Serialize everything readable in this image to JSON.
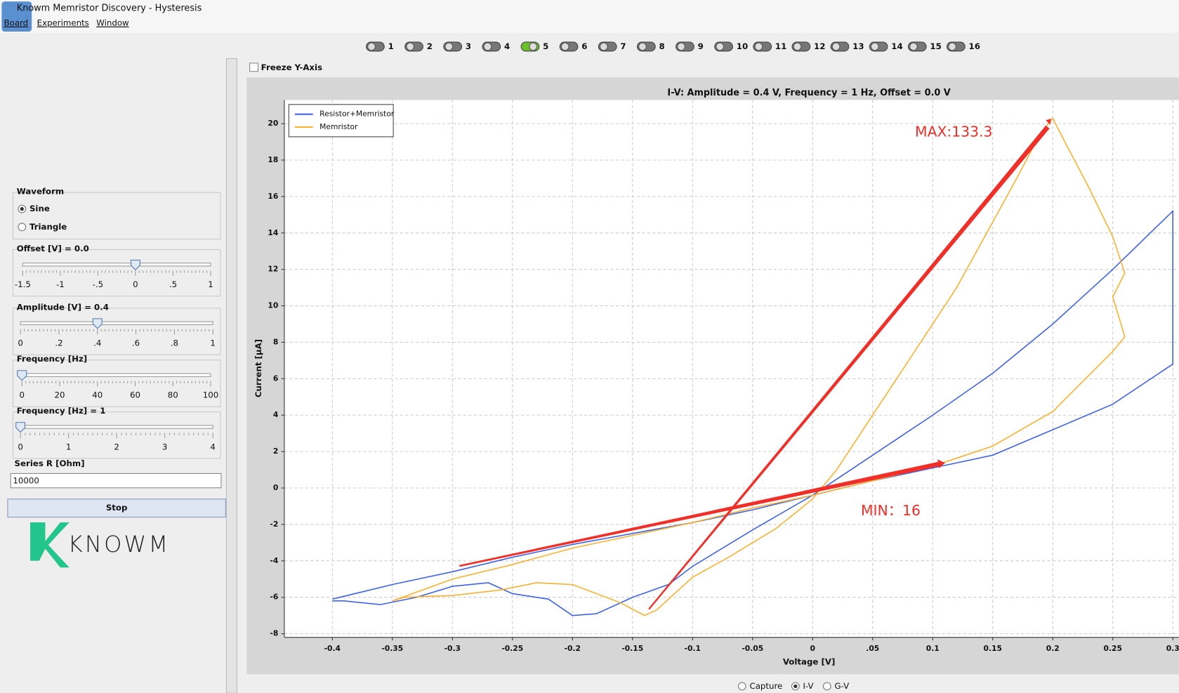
{
  "window": {
    "title": "Knowm Memristor Discovery - Hysteresis"
  },
  "menu": [
    "Board",
    "Experiments",
    "Window"
  ],
  "channels": {
    "labels": [
      "1",
      "2",
      "3",
      "4",
      "5",
      "6",
      "7",
      "8",
      "9",
      "10",
      "11",
      "12",
      "13",
      "14",
      "15",
      "16"
    ],
    "selected": 4
  },
  "freeze": {
    "label": "Freeze Y-Axis",
    "checked": false
  },
  "waveform": {
    "title": "Waveform",
    "options": [
      "Sine",
      "Triangle"
    ],
    "selected": 0
  },
  "sliders": [
    {
      "label": "Offset [V] = 0.0",
      "ticks": [
        -1.5,
        -1,
        {
          "value": -0.5,
          "label": "-.5"
        },
        0,
        {
          "value": 0.5,
          "label": ".5"
        },
        1
      ],
      "value": 0
    },
    {
      "label": "Amplitude [V] = 0.4",
      "ticks": [
        0,
        {
          "value": 0.2,
          "label": ".2"
        },
        {
          "value": 0.4,
          "label": ".4"
        },
        {
          "value": 0.6,
          "label": ".6"
        },
        {
          "value": 0.8,
          "label": ".8"
        },
        1
      ],
      "value": 0.4
    },
    {
      "label": "Frequency [Hz]",
      "ticks": [
        0,
        20,
        40,
        60,
        80,
        100
      ],
      "value": 0
    },
    {
      "label": "Frequency [Hz] = 1",
      "ticks": [
        0,
        1,
        2,
        3,
        4
      ],
      "value": 0
    }
  ],
  "series_r": {
    "label": "Series R [Ohm]",
    "value": "10000"
  },
  "button": "Stop",
  "logo": "KNOWM",
  "view_modes": {
    "options": [
      "Capture",
      "I-V",
      "G-V"
    ],
    "selected": 1
  },
  "chart_data": {
    "type": "line",
    "title": "I-V: Amplitude = 0.4 V, Frequency = 1 Hz, Offset = 0.0 V",
    "x_label": "Voltage [V]",
    "y_label": "Current [µA]",
    "xlim": [
      -0.44,
      0.305
    ],
    "ylim": [
      -8.2,
      21.3
    ],
    "xticks": [
      -0.4,
      -0.35,
      -0.3,
      -0.25,
      -0.2,
      -0.15,
      -0.1,
      -0.05,
      0,
      {
        "value": 0.05,
        "label": ".05"
      },
      0.1,
      0.15,
      0.2,
      0.25,
      0.3
    ],
    "yticks": [
      -8,
      -6,
      -4,
      -2,
      0,
      2,
      4,
      6,
      8,
      10,
      12,
      14,
      16,
      18,
      20
    ],
    "grid": true,
    "legend": "top-left",
    "series": [
      {
        "name": "Resistor+Memristor",
        "color": "#3f63e6",
        "x": [
          -0.4,
          -0.39,
          -0.36,
          -0.33,
          -0.3,
          -0.27,
          -0.25,
          -0.22,
          -0.2,
          -0.18,
          -0.15,
          -0.12,
          -0.1,
          -0.05,
          0,
          0.05,
          0.1,
          0.15,
          0.2,
          0.25,
          0.3,
          0.3,
          0.25,
          0.2,
          0.15,
          0.1,
          0.05,
          0,
          -0.05,
          -0.1,
          -0.15,
          -0.2,
          -0.25,
          -0.3,
          -0.35,
          -0.4
        ],
        "values": [
          -6.2,
          -6.2,
          -6.4,
          -6.0,
          -5.4,
          -5.2,
          -5.8,
          -6.1,
          -7.0,
          -6.9,
          -6.0,
          -5.3,
          -4.3,
          -2.3,
          -0.4,
          1.8,
          4.0,
          6.3,
          9.0,
          12.0,
          15.2,
          6.8,
          4.6,
          3.2,
          1.8,
          1.1,
          0.4,
          -0.4,
          -1.2,
          -1.9,
          -2.5,
          -3.1,
          -3.8,
          -4.6,
          -5.3,
          -6.1
        ]
      },
      {
        "name": "Memristor",
        "color": "#f8b232",
        "x": [
          -0.35,
          -0.3,
          -0.25,
          -0.2,
          -0.15,
          -0.1,
          -0.05,
          0,
          0.05,
          0.1,
          0.15,
          0.2,
          0.25,
          0.26,
          0.25,
          0.26,
          0.25,
          0.23,
          0.21,
          0.2,
          0.19,
          0.17,
          0.15,
          0.12,
          0.08,
          0.05,
          0.02,
          0,
          -0.03,
          -0.07,
          -0.1,
          -0.13,
          -0.14,
          -0.16,
          -0.2,
          -0.23,
          -0.26,
          -0.3,
          -0.34,
          -0.35
        ],
        "values": [
          -6.2,
          -5.0,
          -4.2,
          -3.3,
          -2.6,
          -1.9,
          -1.1,
          -0.4,
          0.4,
          1.2,
          2.3,
          4.2,
          7.5,
          8.3,
          10.5,
          11.8,
          13.8,
          16.5,
          19.0,
          20.3,
          19.5,
          17.0,
          14.6,
          11.0,
          7.0,
          4.0,
          1.0,
          -0.6,
          -2.2,
          -3.8,
          -4.9,
          -6.7,
          -7.0,
          -6.3,
          -5.3,
          -5.2,
          -5.6,
          -5.9,
          -6.0,
          -6.2
        ]
      }
    ],
    "annotations": [
      "MAX:133.3",
      "MIN：16"
    ]
  }
}
